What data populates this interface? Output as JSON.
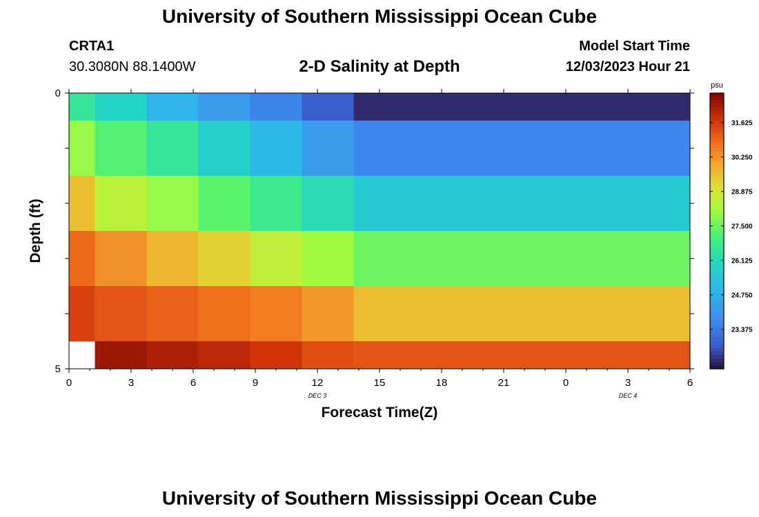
{
  "header": {
    "title": "University of Southern Mississippi Ocean Cube",
    "station": "CRTA1",
    "coords": "30.3080N  88.1400W",
    "plot_title": "2-D Salinity at Depth",
    "start_label": "Model Start Time",
    "start_value": "12/03/2023 Hour 21"
  },
  "footer": {
    "title": "University of Southern Mississippi Ocean Cube"
  },
  "chart_data": {
    "type": "heatmap",
    "title": "2-D Salinity at Depth",
    "xlabel": "Forecast Time(Z)",
    "ylabel": "Depth (ft)",
    "x_ticks": [
      "0",
      "3",
      "6",
      "9",
      "12",
      "15",
      "18",
      "21",
      "0",
      "3",
      "6"
    ],
    "date_labels": [
      {
        "label": "DEC 3",
        "at_tick": 4
      },
      {
        "label": "DEC 4",
        "at_tick": 9
      }
    ],
    "y_tick_labels": [
      {
        "label": "0",
        "depth": 0
      },
      {
        "label": "5",
        "depth": 5
      }
    ],
    "y_range": [
      0,
      5
    ],
    "x_range": [
      0,
      30
    ],
    "time_edges": [
      0,
      1.25,
      3.75,
      6.25,
      8.75,
      11.25,
      13.75,
      30
    ],
    "depth_edges": [
      0,
      0.5,
      1.5,
      2.5,
      3.5,
      4.5,
      5
    ],
    "values": [
      [
        26.6,
        25.9,
        24.9,
        24.2,
        23.6,
        22.8,
        22.1
      ],
      [
        28.0,
        27.2,
        26.6,
        25.8,
        25.0,
        24.2,
        23.7
      ],
      [
        29.6,
        28.5,
        28.0,
        27.3,
        26.8,
        26.2,
        25.6
      ],
      [
        30.9,
        30.3,
        29.7,
        29.3,
        28.6,
        28.1,
        27.5
      ],
      [
        31.5,
        31.2,
        31.0,
        30.8,
        30.6,
        30.2,
        29.6
      ],
      [
        null,
        32.4,
        32.2,
        32.0,
        31.7,
        31.3,
        31.2
      ]
    ],
    "colorbar": {
      "unit": "psu",
      "ticks": [
        "31.625",
        "30.250",
        "28.875",
        "27.500",
        "26.125",
        "24.750",
        "23.375"
      ],
      "range": [
        21.8,
        32.8
      ]
    }
  }
}
